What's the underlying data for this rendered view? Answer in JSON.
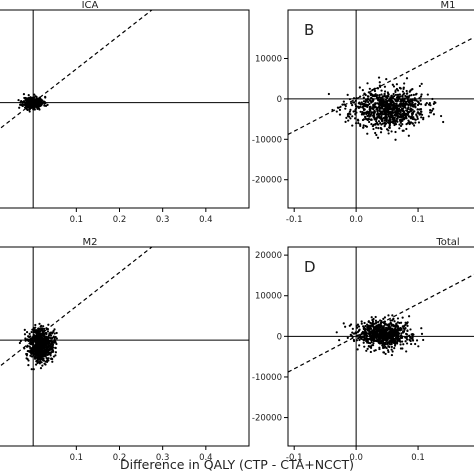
{
  "figure": {
    "xlabel": "Difference in QALY (CTP - CTA+NCCT)"
  },
  "chart_data": [
    {
      "type": "scatter",
      "panel_letter": "",
      "title": "ICA",
      "xlim": [
        -0.1,
        0.5
      ],
      "ylim": [
        -25000,
        22000
      ],
      "x_ticks": [
        0.1,
        0.2,
        0.3,
        0.4
      ],
      "x_tick_labels": [
        "0.1",
        "0.2",
        "0.3",
        "0.4"
      ],
      "y_ticks": [],
      "y_tick_labels": [],
      "threshold_line": {
        "slope": 80000,
        "intercept": 0
      },
      "cloud": {
        "x_mean": 0.0,
        "x_sd": 0.012,
        "y_mean": 0,
        "y_sd": 700,
        "n": 380,
        "seed": 11
      },
      "points": []
    },
    {
      "type": "scatter",
      "panel_letter": "B",
      "title": "M1",
      "xlim": [
        -0.11,
        0.2
      ],
      "ylim": [
        -27000,
        22000
      ],
      "x_ticks": [
        -0.1,
        0.0,
        0.1
      ],
      "x_tick_labels": [
        "-0.1",
        "0.0",
        "0.1"
      ],
      "y_ticks": [
        10000,
        0,
        -10000,
        -20000
      ],
      "y_tick_labels": [
        "10000",
        "0",
        "-10000",
        "-20000"
      ],
      "threshold_line": {
        "slope": 80000,
        "intercept": 0
      },
      "cloud": {
        "x_mean": 0.05,
        "x_sd": 0.03,
        "y_mean": -2500,
        "y_sd": 2400,
        "n": 900,
        "seed": 23
      },
      "points": []
    },
    {
      "type": "scatter",
      "panel_letter": "",
      "title": "M2",
      "xlim": [
        -0.1,
        0.5
      ],
      "ylim": [
        -25000,
        22000
      ],
      "x_ticks": [
        0.1,
        0.2,
        0.3,
        0.4
      ],
      "x_tick_labels": [
        "0.1",
        "0.2",
        "0.3",
        "0.4"
      ],
      "y_ticks": [],
      "y_tick_labels": [],
      "threshold_line": {
        "slope": 80000,
        "intercept": 0
      },
      "cloud": {
        "x_mean": 0.018,
        "x_sd": 0.015,
        "y_mean": -1000,
        "y_sd": 2000,
        "n": 700,
        "seed": 37
      },
      "points": []
    },
    {
      "type": "scatter",
      "panel_letter": "D",
      "title": "Total",
      "xlim": [
        -0.11,
        0.2
      ],
      "ylim": [
        -27000,
        22000
      ],
      "x_ticks": [
        -0.1,
        0.0,
        0.1
      ],
      "x_tick_labels": [
        "-0.1",
        "0.0",
        "0.1"
      ],
      "y_ticks": [
        20000,
        10000,
        0,
        -10000,
        -20000
      ],
      "y_tick_labels": [
        "20000",
        "10000",
        "0",
        "-10000",
        "-20000"
      ],
      "threshold_line": {
        "slope": 80000,
        "intercept": 0
      },
      "cloud": {
        "x_mean": 0.045,
        "x_sd": 0.022,
        "y_mean": 500,
        "y_sd": 1700,
        "n": 800,
        "seed": 53
      },
      "points": [
        [
          0.0,
          800
        ],
        [
          -0.02,
          3200
        ]
      ]
    }
  ]
}
